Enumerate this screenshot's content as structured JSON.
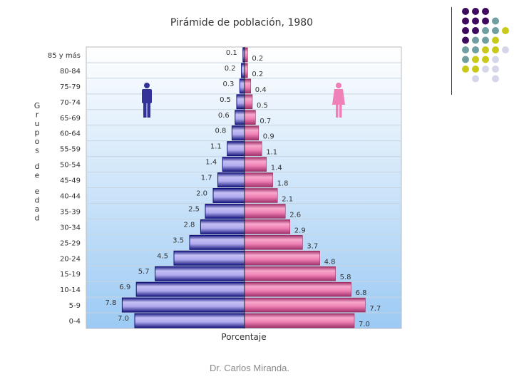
{
  "chart_data": {
    "type": "bar",
    "title": "Pirámide de población, 1980",
    "xlabel": "Porcentaje",
    "ylabel": "Grupos de edad",
    "categories": [
      "85 y más",
      "80-84",
      "75-79",
      "70-74",
      "65-69",
      "60-64",
      "55-59",
      "50-54",
      "45-49",
      "40-44",
      "35-39",
      "30-34",
      "25-29",
      "20-24",
      "15-19",
      "10-14",
      "5-9",
      "0-4"
    ],
    "series": [
      {
        "values": [
          0.1,
          0.2,
          0.3,
          0.5,
          0.6,
          0.8,
          1.1,
          1.4,
          1.7,
          2.0,
          2.5,
          2.8,
          3.5,
          4.5,
          5.7,
          6.9,
          7.8,
          7.0
        ],
        "color": "#b8b4f0",
        "icon": "male-figure-icon",
        "side": "left"
      },
      {
        "values": [
          0.2,
          0.2,
          0.4,
          0.5,
          0.7,
          0.9,
          1.1,
          1.4,
          1.8,
          2.1,
          2.6,
          2.9,
          3.7,
          4.8,
          5.8,
          6.8,
          7.7,
          7.0
        ],
        "color": "#f08cbc",
        "icon": "female-figure-icon",
        "side": "right"
      }
    ],
    "xlim": [
      -10,
      10
    ],
    "grid": true
  },
  "footer": "Dr. Carlos Miranda.",
  "decoration_colors": [
    "#3d0a5e",
    "#6f9fa0",
    "#c9c91a",
    "#d6d6ea"
  ]
}
